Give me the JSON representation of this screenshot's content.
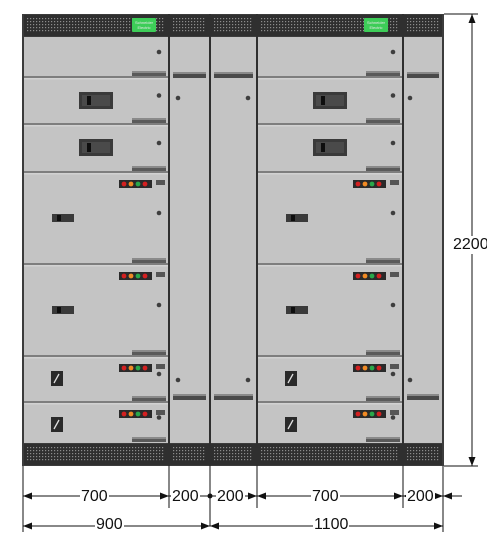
{
  "brand": {
    "name": "Schneider Electric",
    "line1": "Schneider",
    "line2": "Electric",
    "color": "#3dcd58"
  },
  "dimensions": {
    "height": "2200",
    "segment_widths": [
      "700",
      "200",
      "200",
      "700",
      "200"
    ],
    "group_widths": [
      "900",
      "1100"
    ]
  },
  "colors": {
    "panel": "#c4c4c4",
    "panel_light": "#d2d2d2",
    "frame": "#3c3c3c",
    "grille": "#2f2f2f",
    "handle": "#8a8a8a",
    "indicator_red": "#d42020",
    "indicator_orange": "#f08a24",
    "indicator_green": "#2aa84a"
  },
  "cabinets": [
    {
      "kind": "drawer-column",
      "width_mm": "700",
      "has_logo": true
    },
    {
      "kind": "cable-column",
      "width_mm": "200"
    },
    {
      "kind": "cable-column",
      "width_mm": "200"
    },
    {
      "kind": "drawer-column",
      "width_mm": "700",
      "has_logo": true
    },
    {
      "kind": "cable-column",
      "width_mm": "200"
    }
  ],
  "drawer_rows": [
    {
      "type": "blank"
    },
    {
      "type": "breaker"
    },
    {
      "type": "breaker"
    },
    {
      "type": "starter"
    },
    {
      "type": "starter"
    },
    {
      "type": "switch"
    },
    {
      "type": "switch"
    }
  ]
}
